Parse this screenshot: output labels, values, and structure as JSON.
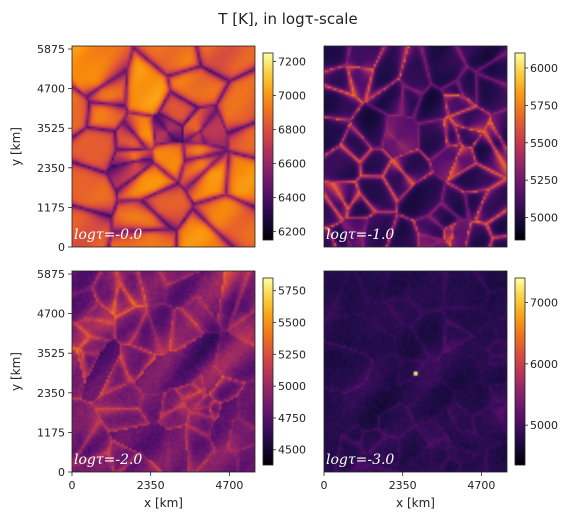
{
  "chart_data": {
    "type": "heatmap",
    "title": "T [K], in logτ-scale",
    "colormap": "inferno",
    "x_ticks": [
      "0",
      "2350",
      "4700"
    ],
    "y_ticks": [
      "0",
      "1175",
      "2350",
      "3525",
      "4700",
      "5875"
    ],
    "xlabel": "x [km]",
    "ylabel": "y [km]",
    "panels": [
      {
        "label": "logτ=-0.0",
        "colorbar_ticks": [
          6200,
          6400,
          6600,
          6800,
          7000,
          7200
        ],
        "vmin": 6150,
        "vmax": 7250,
        "pattern": "granulation"
      },
      {
        "label": "logτ=-1.0",
        "colorbar_ticks": [
          5000,
          5250,
          5500,
          5750,
          6000
        ],
        "vmin": 4850,
        "vmax": 6100,
        "pattern": "network"
      },
      {
        "label": "logτ=-2.0",
        "colorbar_ticks": [
          4500,
          4750,
          5000,
          5250,
          5500,
          5750
        ],
        "vmin": 4380,
        "vmax": 5850,
        "pattern": "mottled"
      },
      {
        "label": "logτ=-3.0",
        "colorbar_ticks": [
          5000,
          6000,
          7000
        ],
        "vmin": 4350,
        "vmax": 7400,
        "pattern": "faint"
      }
    ]
  }
}
